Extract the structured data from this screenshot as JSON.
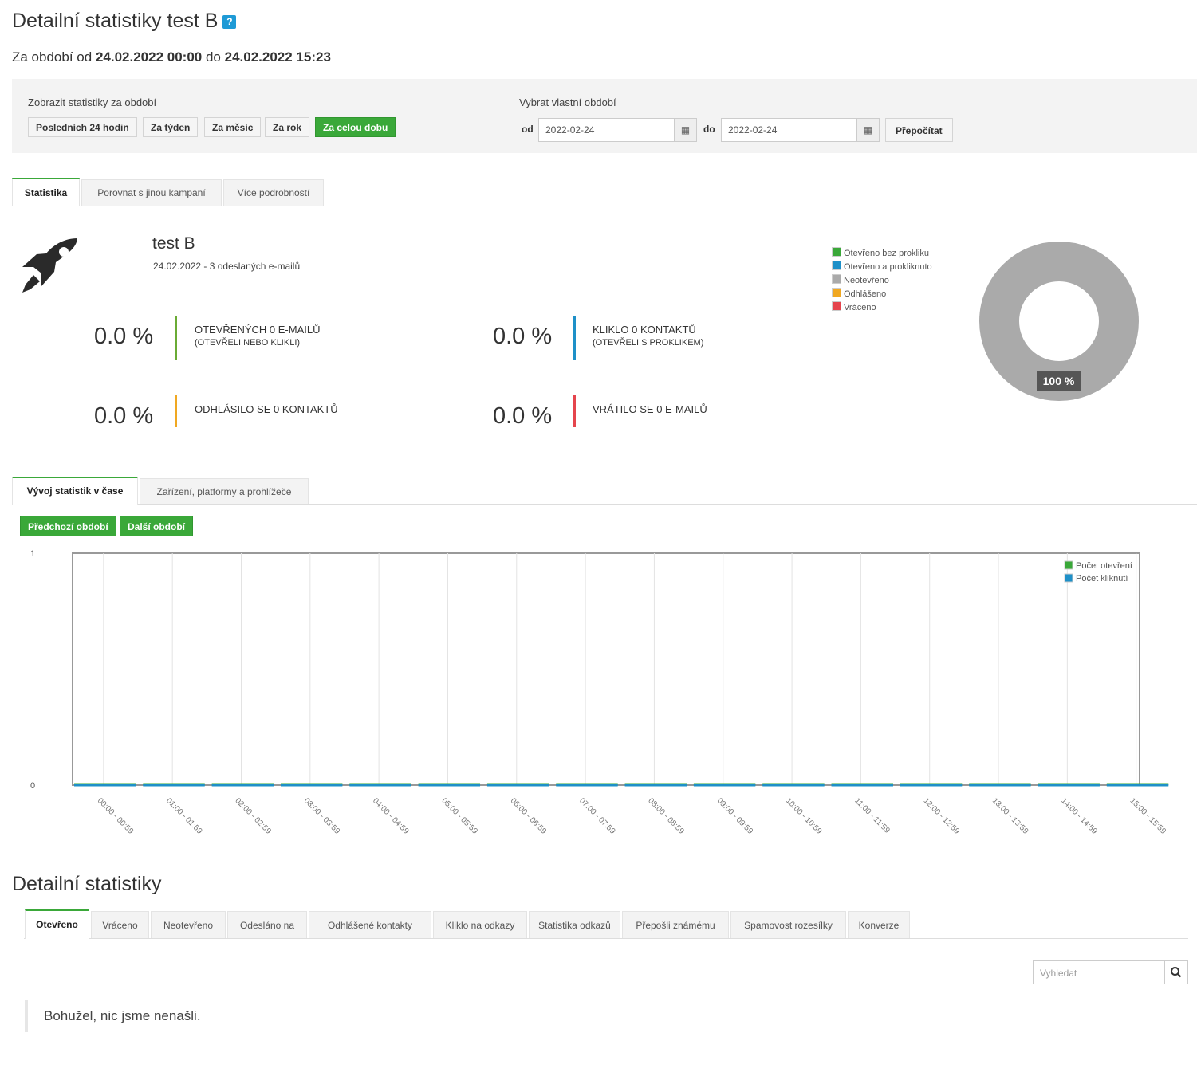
{
  "header": {
    "title": "Detailní statistiky test B",
    "help_icon": "?",
    "period_prefix": "Za období od",
    "period_from": "24.02.2022 00:00",
    "period_mid": "do",
    "period_to": "24.02.2022 15:23"
  },
  "filter": {
    "show_label": "Zobrazit statistiky za období",
    "buttons": [
      "Posledních 24 hodin",
      "Za týden",
      "Za měsíc",
      "Za rok",
      "Za celou dobu"
    ],
    "active_button": "Za celou dobu",
    "custom_label": "Vybrat vlastní období",
    "from_label": "od",
    "from_value": "2022-02-24",
    "to_label": "do",
    "to_value": "2022-02-24",
    "recalc_label": "Přepočítat"
  },
  "tabs": [
    "Statistika",
    "Porovnat s jinou kampaní",
    "Více podrobností"
  ],
  "campaign": {
    "name": "test B",
    "info": "24.02.2022 - 3 odeslaných e-mailů"
  },
  "stats": [
    {
      "pct": "0.0 %",
      "label": "OTEVŘENÝCH 0 E-MAILŮ",
      "sub": "(OTEVŘELI NEBO KLIKLI)",
      "color": "#6aab35"
    },
    {
      "pct": "0.0 %",
      "label": "KLIKLO 0 KONTAKTŮ",
      "sub": "(OTEVŘELI S PROKLIKEM)",
      "color": "#1e90c8"
    },
    {
      "pct": "0.0 %",
      "label": "ODHLÁSILO SE 0 KONTAKTŮ",
      "sub": "",
      "color": "#f0a822"
    },
    {
      "pct": "0.0 %",
      "label": "VRÁTILO SE 0 E-MAILŮ",
      "sub": "",
      "color": "#e5454d"
    }
  ],
  "donut": {
    "legend": [
      {
        "name": "Otevřeno bez prokliku",
        "color": "#3aa839"
      },
      {
        "name": "Otevřeno a prokliknuto",
        "color": "#1e90c8"
      },
      {
        "name": "Neotevřeno",
        "color": "#aaaaaa"
      },
      {
        "name": "Odhlášeno",
        "color": "#f0a822"
      },
      {
        "name": "Vráceno",
        "color": "#e5454d"
      }
    ],
    "label": "100 %"
  },
  "chart_tabs": [
    "Vývoj statistik v čase",
    "Zařízení, platformy a prohlížeče"
  ],
  "chart_buttons": [
    "Předchozí období",
    "Další období"
  ],
  "chart_data": {
    "type": "line",
    "categories": [
      "00:00 - 00:59",
      "01:00 - 01:59",
      "02:00 - 02:59",
      "03:00 - 03:59",
      "04:00 - 04:59",
      "05:00 - 05:59",
      "06:00 - 06:59",
      "07:00 - 07:59",
      "08:00 - 08:59",
      "09:00 - 09:59",
      "10:00 - 10:59",
      "11:00 - 11:59",
      "12:00 - 12:59",
      "13:00 - 13:59",
      "14:00 - 14:59",
      "15:00 - 15:59"
    ],
    "series": [
      {
        "name": "Počet otevření",
        "color": "#3aa839",
        "values": [
          0,
          0,
          0,
          0,
          0,
          0,
          0,
          0,
          0,
          0,
          0,
          0,
          0,
          0,
          0,
          0
        ]
      },
      {
        "name": "Počet kliknutí",
        "color": "#1e90c8",
        "values": [
          0,
          0,
          0,
          0,
          0,
          0,
          0,
          0,
          0,
          0,
          0,
          0,
          0,
          0,
          0,
          0
        ]
      }
    ],
    "ylim": [
      0,
      1
    ],
    "yticks": [
      "1",
      "0"
    ],
    "legend_position": "top-right",
    "grid": true
  },
  "detail": {
    "title": "Detailní statistiky",
    "tabs": [
      "Otevřeno",
      "Vráceno",
      "Neotevřeno",
      "Odesláno na",
      "Odhlášené kontakty",
      "Kliklo na odkazy",
      "Statistika odkazů",
      "Přepošli známému",
      "Spamovost rozesílky",
      "Konverze"
    ],
    "search_placeholder": "Vyhledat",
    "empty_message": "Bohužel, nic jsme nenašli."
  }
}
